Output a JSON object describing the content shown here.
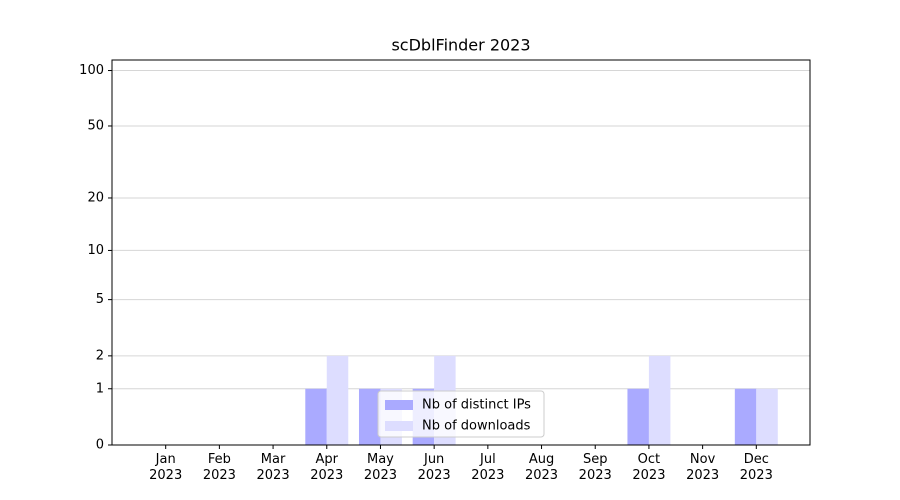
{
  "chart_data": {
    "type": "bar",
    "title": "scDblFinder 2023",
    "categories": [
      "Jan\n2023",
      "Feb\n2023",
      "Mar\n2023",
      "Apr\n2023",
      "May\n2023",
      "Jun\n2023",
      "Jul\n2023",
      "Aug\n2023",
      "Sep\n2023",
      "Oct\n2023",
      "Nov\n2023",
      "Dec\n2023"
    ],
    "series": [
      {
        "name": "Nb of distinct IPs",
        "color": "#aaaaff",
        "values": [
          0,
          0,
          0,
          1,
          1,
          1,
          0,
          0,
          0,
          1,
          0,
          1
        ]
      },
      {
        "name": "Nb of downloads",
        "color": "#ddddff",
        "values": [
          0,
          0,
          0,
          2,
          1,
          2,
          0,
          0,
          0,
          2,
          0,
          1
        ]
      }
    ],
    "yscale": "log1p",
    "ylim": [
      0,
      114
    ],
    "yticks": [
      0,
      1,
      2,
      5,
      10,
      20,
      50,
      100
    ],
    "grid": true,
    "legend": "lower center"
  }
}
